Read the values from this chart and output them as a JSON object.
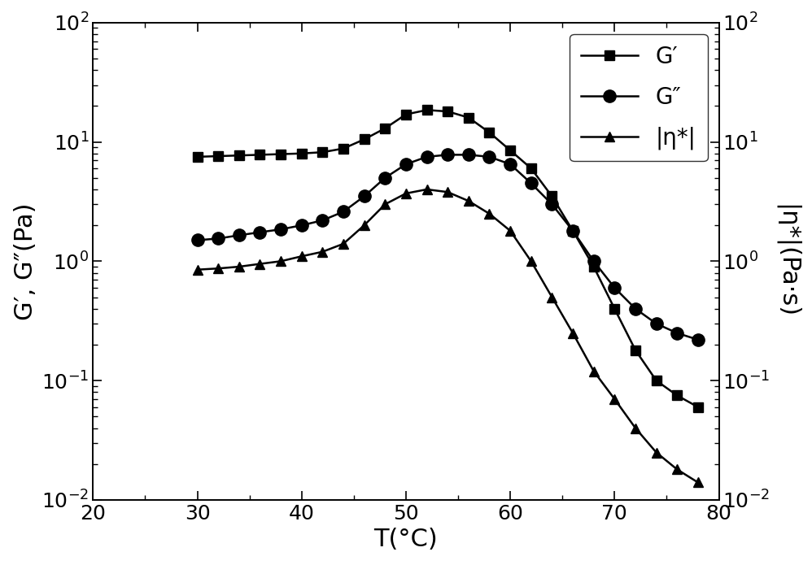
{
  "title": "",
  "xlabel": "T(°C)",
  "ylabel_left": "G′, G″(Pa)",
  "ylabel_right": "|η*|(Pa·s)",
  "xlim": [
    20,
    80
  ],
  "background_color": "#ffffff",
  "G_prime": {
    "x": [
      30,
      32,
      34,
      36,
      38,
      40,
      42,
      44,
      46,
      48,
      50,
      52,
      54,
      56,
      58,
      60,
      62,
      64,
      66,
      68,
      70,
      72,
      74,
      76,
      78
    ],
    "y": [
      7.5,
      7.6,
      7.7,
      7.8,
      7.9,
      8.0,
      8.2,
      8.8,
      10.5,
      13.0,
      17.0,
      18.5,
      18.0,
      16.0,
      12.0,
      8.5,
      6.0,
      3.5,
      1.8,
      0.9,
      0.4,
      0.18,
      0.1,
      0.075,
      0.06
    ],
    "marker": "s",
    "label": "G′",
    "color": "black",
    "markersize": 9
  },
  "G_double_prime": {
    "x": [
      30,
      32,
      34,
      36,
      38,
      40,
      42,
      44,
      46,
      48,
      50,
      52,
      54,
      56,
      58,
      60,
      62,
      64,
      66,
      68,
      70,
      72,
      74,
      76,
      78
    ],
    "y": [
      1.5,
      1.55,
      1.65,
      1.75,
      1.85,
      2.0,
      2.2,
      2.6,
      3.5,
      5.0,
      6.5,
      7.5,
      7.8,
      7.8,
      7.5,
      6.5,
      4.5,
      3.0,
      1.8,
      1.0,
      0.6,
      0.4,
      0.3,
      0.25,
      0.22
    ],
    "marker": "o",
    "label": "G″",
    "color": "black",
    "markersize": 11
  },
  "eta_star": {
    "x": [
      30,
      32,
      34,
      36,
      38,
      40,
      42,
      44,
      46,
      48,
      50,
      52,
      54,
      56,
      58,
      60,
      62,
      64,
      66,
      68,
      70,
      72,
      74,
      76,
      78
    ],
    "y": [
      0.85,
      0.87,
      0.9,
      0.95,
      1.0,
      1.1,
      1.2,
      1.4,
      2.0,
      3.0,
      3.7,
      4.0,
      3.8,
      3.2,
      2.5,
      1.8,
      1.0,
      0.5,
      0.25,
      0.12,
      0.07,
      0.04,
      0.025,
      0.018,
      0.014
    ],
    "marker": "^",
    "label": "|η*|",
    "color": "black",
    "markersize": 9
  },
  "xticks": [
    20,
    30,
    40,
    50,
    60,
    70,
    80
  ],
  "legend_loc": "upper right",
  "linewidth": 1.8,
  "markerfacecolor": "black",
  "tick_labelsize": 18,
  "axis_labelsize": 22,
  "legend_fontsize": 20
}
